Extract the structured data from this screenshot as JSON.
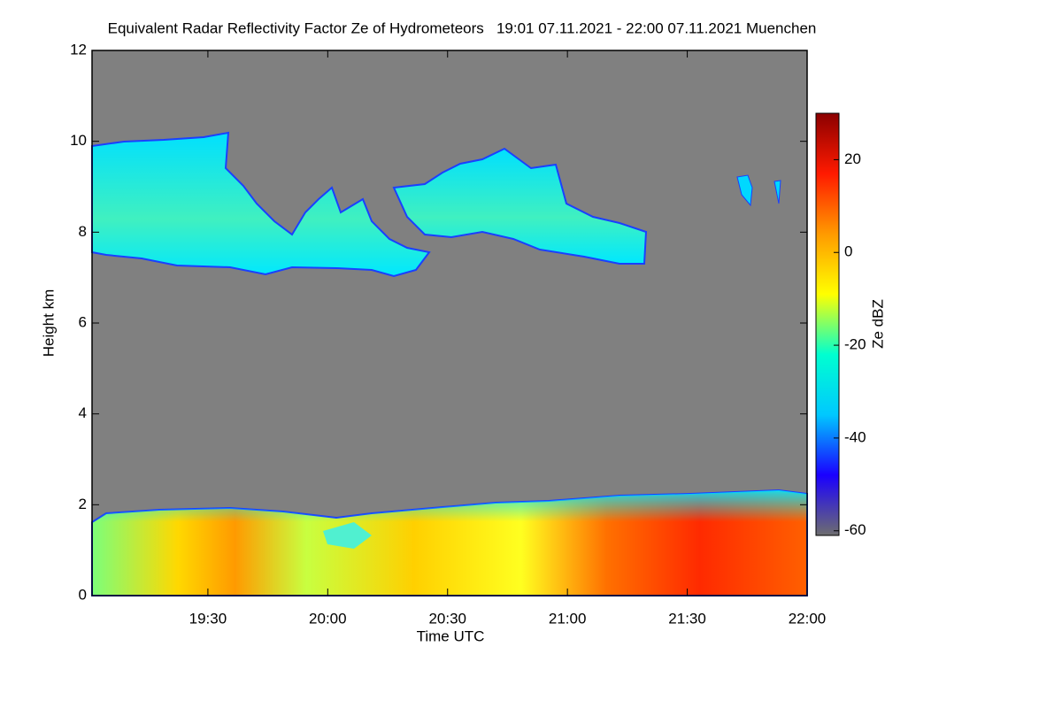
{
  "chart_data": {
    "type": "heatmap",
    "title": "Equivalent Radar Reflectivity Factor Ze of Hydrometeors   19:01 07.11.2021 - 22:00 07.11.2021 Muenchen",
    "x_label": "Time UTC",
    "y_label": "Height km",
    "xlim": [
      1141,
      1320
    ],
    "xticks": [
      {
        "value": 1170,
        "label": "19:30"
      },
      {
        "value": 1200,
        "label": "20:00"
      },
      {
        "value": 1230,
        "label": "20:30"
      },
      {
        "value": 1260,
        "label": "21:00"
      },
      {
        "value": 1290,
        "label": "21:30"
      },
      {
        "value": 1320,
        "label": "22:00"
      }
    ],
    "ylim": [
      0,
      12
    ],
    "yticks": [
      0,
      2,
      4,
      6,
      8,
      10,
      12
    ],
    "colorbar": {
      "label": "Ze dBZ",
      "lim": [
        -61,
        30
      ],
      "ticks": [
        -60,
        -40,
        -20,
        0,
        20
      ],
      "colors": [
        "#6e6e6e",
        "#1a00ff",
        "#00c8ff",
        "#00ffd0",
        "#ffff00",
        "#ff9a00",
        "#ff1a00",
        "#8b0000"
      ]
    }
  }
}
